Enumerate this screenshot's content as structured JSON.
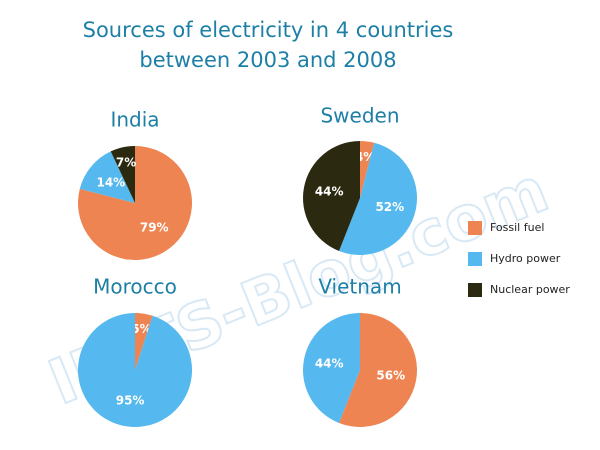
{
  "title": "Sources of electricity in 4 countries between 2003 and 2008",
  "watermark": "IELTS-Blog.com",
  "chart_data": [
    {
      "type": "pie",
      "title": "India",
      "categories": [
        "Fossil fuel",
        "Hydro power",
        "Nuclear power"
      ],
      "values": [
        79,
        14,
        7
      ],
      "value_labels": [
        "79%",
        "14%",
        "7%"
      ],
      "colors": [
        "#ee8452",
        "#55b8ee",
        "#2b2a10"
      ]
    },
    {
      "type": "pie",
      "title": "Sweden",
      "categories": [
        "Fossil fuel",
        "Hydro power",
        "Nuclear power"
      ],
      "values": [
        4,
        52,
        44
      ],
      "value_labels": [
        "4%",
        "52%",
        "44%"
      ],
      "colors": [
        "#ee8452",
        "#55b8ee",
        "#2b2a10"
      ]
    },
    {
      "type": "pie",
      "title": "Morocco",
      "categories": [
        "Fossil fuel",
        "Hydro power"
      ],
      "values": [
        5,
        95
      ],
      "value_labels": [
        "5%",
        "95%"
      ],
      "colors": [
        "#ee8452",
        "#55b8ee"
      ]
    },
    {
      "type": "pie",
      "title": "Vietnam",
      "categories": [
        "Fossil fuel",
        "Hydro power"
      ],
      "values": [
        56,
        44
      ],
      "value_labels": [
        "56%",
        "44%"
      ],
      "colors": [
        "#ee8452",
        "#55b8ee"
      ]
    }
  ]
}
